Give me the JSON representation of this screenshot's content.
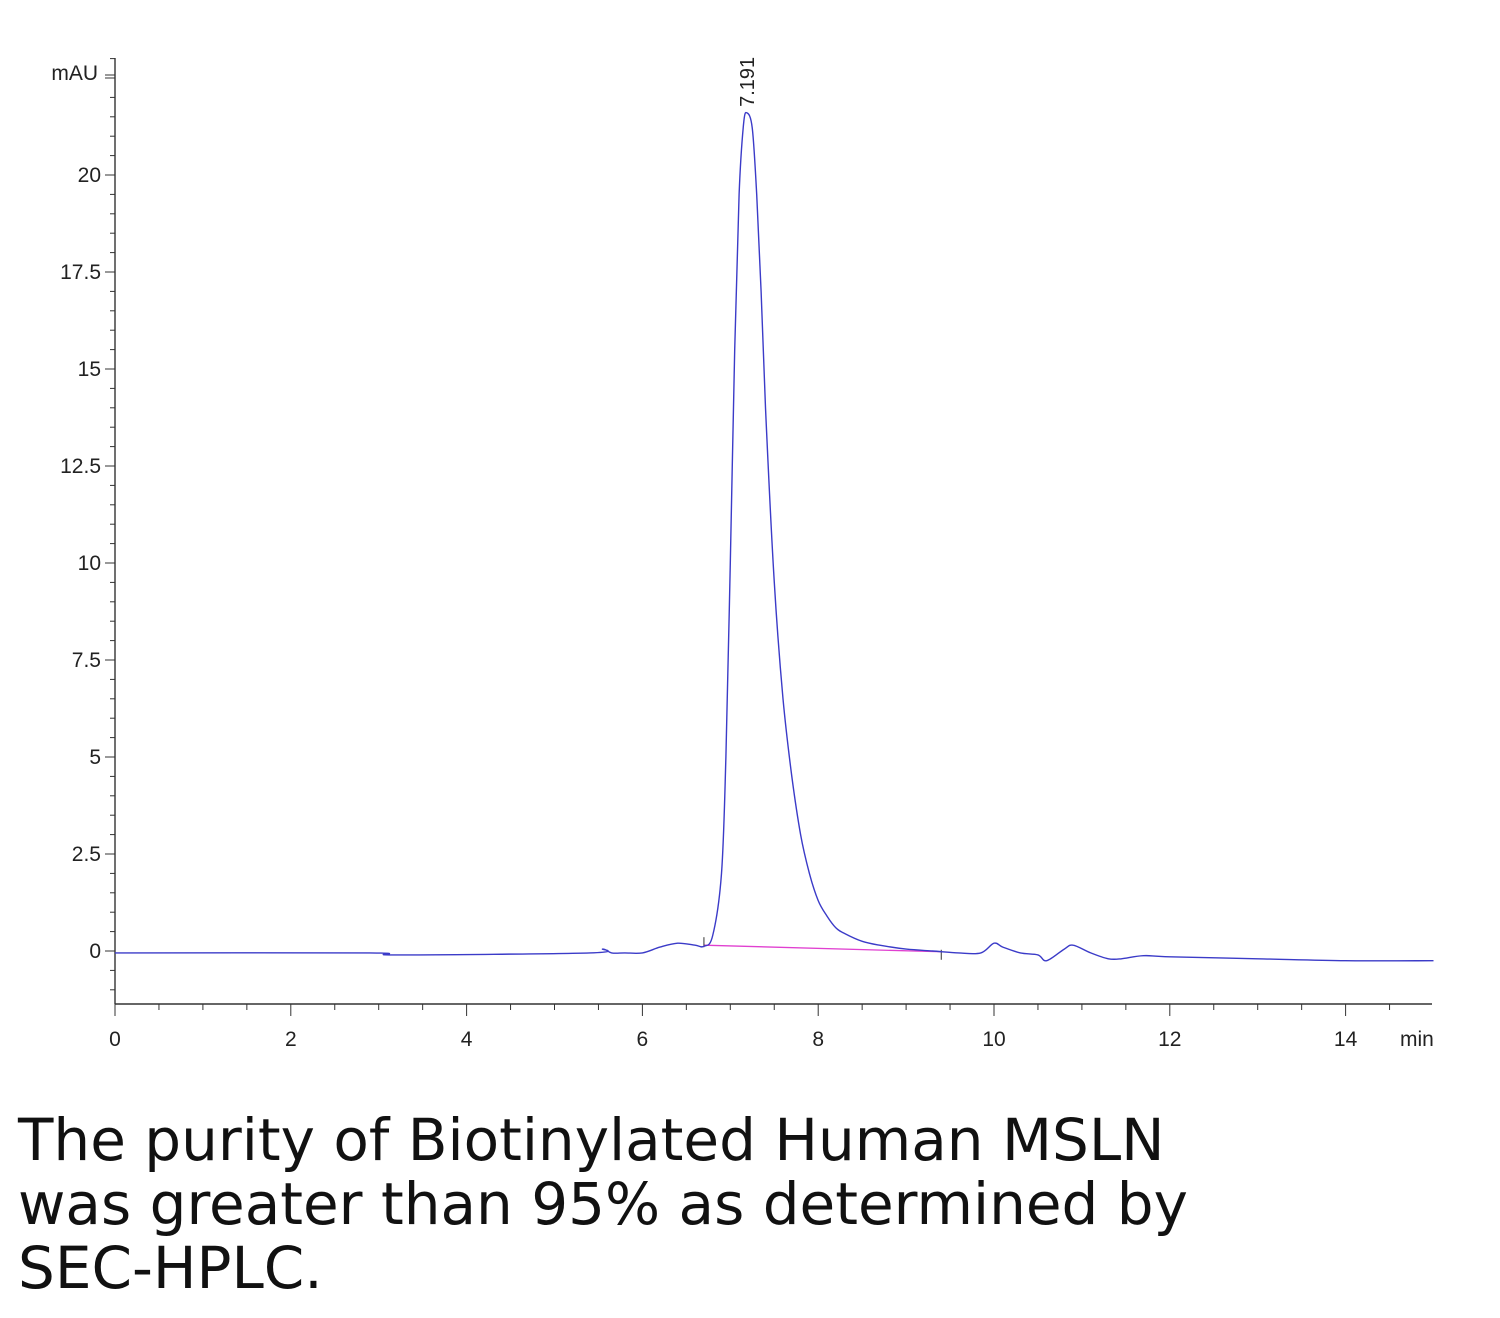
{
  "chart_data": {
    "type": "line",
    "title": "",
    "xlabel": "min",
    "ylabel": "mAU",
    "xlim": [
      0,
      15
    ],
    "ylim": [
      -1.4,
      23.6
    ],
    "x_ticks": [
      0,
      2,
      4,
      6,
      8,
      10,
      12,
      14
    ],
    "x_tick_labels": [
      "0",
      "2",
      "4",
      "6",
      "8",
      "10",
      "12",
      "14"
    ],
    "y_ticks": [
      0,
      2.5,
      5,
      7.5,
      10,
      12.5,
      15,
      17.5,
      20
    ],
    "y_tick_labels": [
      "0",
      "2.5",
      "5",
      "7.5",
      "10",
      "12.5",
      "15",
      "17.5",
      "20"
    ],
    "grid": false,
    "series": [
      {
        "color": "#3b3bc8",
        "x": [
          0,
          2.9,
          3.2,
          5.4,
          5.55,
          5.65,
          5.8,
          6.0,
          6.2,
          6.4,
          6.6,
          6.7,
          6.8,
          6.9,
          6.95,
          7.0,
          7.05,
          7.1,
          7.15,
          7.19,
          7.25,
          7.3,
          7.35,
          7.4,
          7.5,
          7.6,
          7.7,
          7.8,
          7.9,
          8.0,
          8.1,
          8.2,
          8.3,
          8.5,
          8.7,
          9.0,
          9.3,
          9.6,
          9.85,
          10.0,
          10.1,
          10.3,
          10.5,
          10.6,
          10.8,
          10.9,
          11.1,
          11.3,
          11.45,
          11.7,
          12.0,
          13.0,
          14.0,
          15.0
        ],
        "y": [
          -0.05,
          -0.05,
          -0.1,
          -0.05,
          0.05,
          -0.05,
          -0.05,
          -0.05,
          0.1,
          0.2,
          0.15,
          0.12,
          0.4,
          2.0,
          5.0,
          10.0,
          15.5,
          19.5,
          21.3,
          21.6,
          21.2,
          19.5,
          17.0,
          14.0,
          9.5,
          6.5,
          4.5,
          3.0,
          2.0,
          1.3,
          0.9,
          0.6,
          0.45,
          0.25,
          0.15,
          0.05,
          0.0,
          -0.05,
          -0.05,
          0.2,
          0.1,
          -0.05,
          -0.1,
          -0.25,
          0.05,
          0.15,
          -0.05,
          -0.2,
          -0.2,
          -0.12,
          -0.15,
          -0.2,
          -0.25,
          -0.25
        ]
      }
    ],
    "baseline": {
      "color": "#e040d0",
      "x": [
        6.7,
        9.4
      ],
      "y": [
        0.15,
        -0.02
      ]
    },
    "peak_annotations": [
      {
        "x": 7.19,
        "y": 21.6,
        "label": "7.191"
      }
    ],
    "legend": "none"
  },
  "caption": "The purity of Biotinylated Human MSLN was greater than 95% as determined by SEC-HPLC."
}
